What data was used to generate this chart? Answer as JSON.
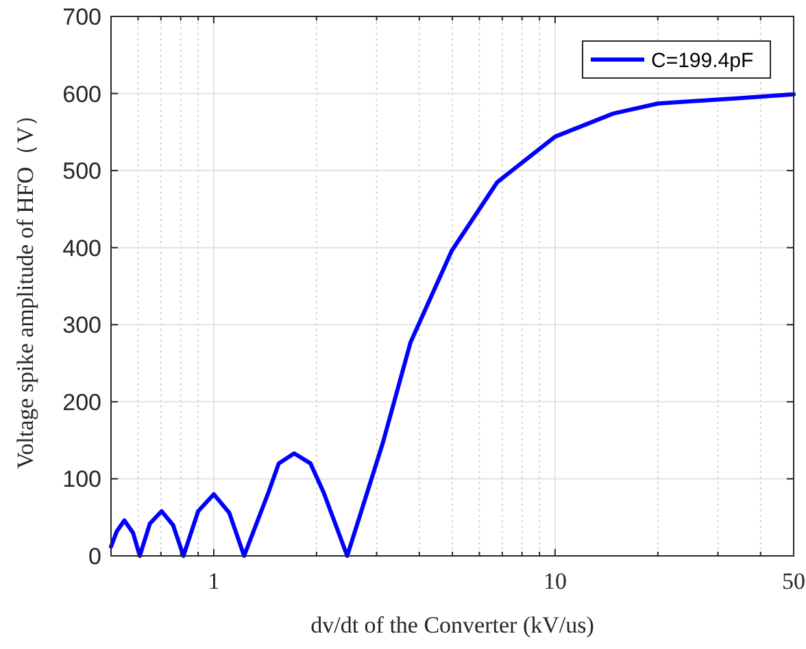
{
  "chart_data": {
    "type": "line",
    "xlabel": "dv/dt of the Converter  (kV/us)",
    "ylabel": "Voltage spike amplitude of HFO（V）",
    "log": "x",
    "xlim": [
      0.5,
      50
    ],
    "xticks": [
      1,
      10,
      50
    ],
    "ylim": [
      0,
      700
    ],
    "yticks": [
      0,
      100,
      200,
      300,
      400,
      500,
      600,
      700
    ],
    "grid": true,
    "legend": "top right",
    "series": [
      {
        "name": "C=199.4pF",
        "color": "#0000ff",
        "x": [
          0.5,
          0.52,
          0.547,
          0.58,
          0.607,
          0.65,
          0.703,
          0.76,
          0.815,
          0.9,
          1.0,
          1.11,
          1.227,
          1.445,
          1.55,
          1.72,
          1.92,
          2.1,
          2.46,
          3.13,
          3.77,
          4.98,
          6.77,
          10,
          14.8,
          20,
          27.3,
          35,
          50
        ],
        "values": [
          12,
          32,
          46,
          30,
          0,
          42,
          58,
          40,
          0,
          58,
          80,
          56,
          0,
          82,
          120,
          133,
          120,
          82,
          0,
          147,
          277,
          396,
          485,
          544,
          574,
          587,
          591,
          594,
          599
        ]
      }
    ]
  }
}
